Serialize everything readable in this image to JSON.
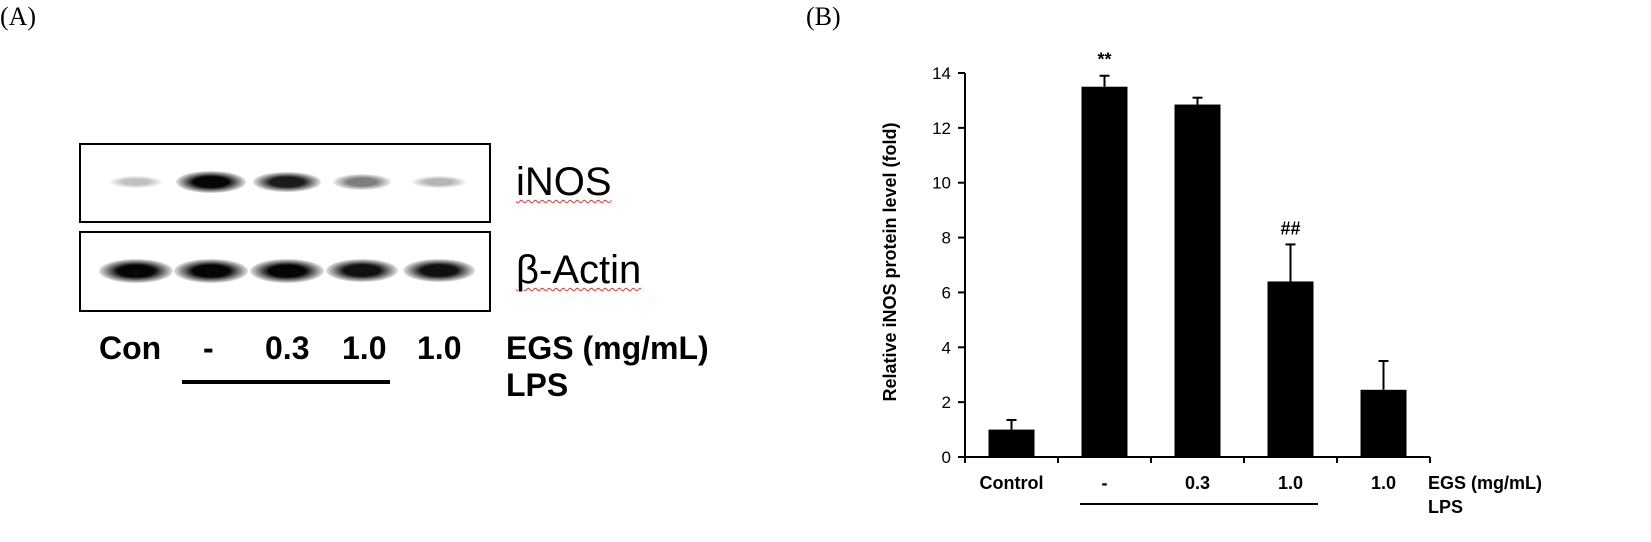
{
  "panel_a": {
    "label": "(A)",
    "blot_labels": [
      "iNOS",
      "β-Actin"
    ],
    "inos_band_intensity": [
      0.15,
      1.0,
      0.9,
      0.45,
      0.2
    ],
    "actin_band_intensity": [
      1.0,
      1.0,
      1.0,
      0.95,
      0.95
    ],
    "lanes": [
      "Con",
      "-",
      "0.3",
      "1.0",
      "1.0"
    ],
    "egs_label": "EGS (mg/mL)",
    "lps_label": "LPS"
  },
  "panel_b": {
    "label": "(B)"
  },
  "chart_data": {
    "type": "bar",
    "categories": [
      "Control",
      "-",
      "0.3",
      "1.0",
      "1.0"
    ],
    "values": [
      1.0,
      13.5,
      12.85,
      6.4,
      2.45
    ],
    "errors": [
      0.35,
      0.4,
      0.25,
      1.35,
      1.05
    ],
    "annotations": [
      "",
      "**",
      "",
      "##",
      ""
    ],
    "ylabel": "Relative iNOS protein level (fold)",
    "ylim": [
      0,
      14
    ],
    "yticks": [
      0,
      2,
      4,
      6,
      8,
      10,
      12,
      14
    ],
    "egs_label": "EGS (mg/mL)",
    "lps_label": "LPS",
    "grid": false,
    "bar_color": "#000000"
  }
}
